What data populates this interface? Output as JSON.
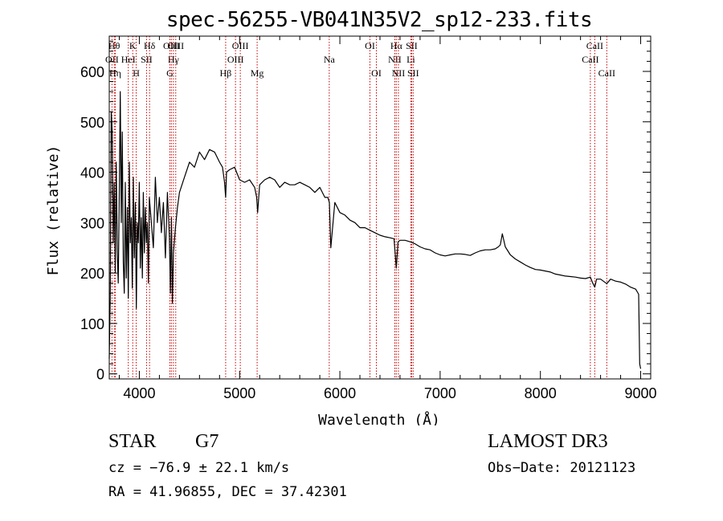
{
  "chart_data": {
    "type": "line",
    "title": "spec-56255-VB041N35V2_sp12-233.fits",
    "xlabel": "Wavelength (Å)",
    "ylabel": "Flux (relative)",
    "xlim": [
      3700,
      9100
    ],
    "ylim": [
      -10,
      670
    ],
    "xticks": [
      4000,
      5000,
      6000,
      7000,
      8000,
      9000
    ],
    "yticks": [
      0,
      100,
      200,
      300,
      400,
      500,
      600
    ],
    "grid": false,
    "series": [
      {
        "name": "flux",
        "x": [
          3700,
          3710,
          3720,
          3730,
          3740,
          3750,
          3760,
          3770,
          3780,
          3790,
          3800,
          3810,
          3820,
          3830,
          3840,
          3850,
          3860,
          3870,
          3880,
          3890,
          3900,
          3910,
          3920,
          3930,
          3940,
          3950,
          3960,
          3970,
          3980,
          3990,
          4000,
          4010,
          4020,
          4030,
          4040,
          4050,
          4060,
          4070,
          4080,
          4090,
          4100,
          4120,
          4140,
          4160,
          4180,
          4200,
          4220,
          4240,
          4260,
          4280,
          4300,
          4310,
          4320,
          4330,
          4340,
          4360,
          4380,
          4400,
          4450,
          4500,
          4550,
          4600,
          4650,
          4700,
          4750,
          4800,
          4830,
          4850,
          4861,
          4870,
          4900,
          4950,
          5000,
          5050,
          5100,
          5150,
          5170,
          5180,
          5200,
          5250,
          5300,
          5350,
          5400,
          5450,
          5500,
          5550,
          5600,
          5650,
          5700,
          5750,
          5800,
          5850,
          5880,
          5895,
          5910,
          5950,
          6000,
          6050,
          6100,
          6150,
          6200,
          6250,
          6300,
          6350,
          6400,
          6450,
          6500,
          6540,
          6563,
          6580,
          6600,
          6650,
          6700,
          6750,
          6800,
          6850,
          6900,
          6950,
          7000,
          7050,
          7100,
          7150,
          7200,
          7250,
          7300,
          7350,
          7400,
          7450,
          7500,
          7550,
          7580,
          7600,
          7620,
          7650,
          7700,
          7750,
          7800,
          7850,
          7900,
          7950,
          8000,
          8050,
          8100,
          8150,
          8200,
          8250,
          8300,
          8350,
          8400,
          8450,
          8498,
          8520,
          8542,
          8560,
          8600,
          8662,
          8700,
          8750,
          8800,
          8850,
          8900,
          8950,
          8980,
          8990,
          9000
        ],
        "values": [
          30,
          150,
          520,
          480,
          260,
          380,
          200,
          420,
          240,
          180,
          360,
          560,
          300,
          480,
          220,
          160,
          380,
          190,
          330,
          150,
          420,
          260,
          310,
          170,
          390,
          230,
          340,
          130,
          300,
          260,
          380,
          210,
          310,
          190,
          360,
          240,
          330,
          260,
          300,
          180,
          350,
          300,
          250,
          390,
          300,
          350,
          280,
          340,
          230,
          360,
          270,
          160,
          310,
          140,
          240,
          290,
          330,
          360,
          390,
          420,
          410,
          440,
          425,
          445,
          440,
          420,
          410,
          380,
          350,
          400,
          405,
          410,
          385,
          380,
          385,
          370,
          350,
          320,
          375,
          385,
          390,
          385,
          370,
          380,
          375,
          375,
          380,
          375,
          370,
          360,
          370,
          350,
          350,
          340,
          250,
          340,
          320,
          315,
          305,
          300,
          290,
          290,
          285,
          280,
          275,
          272,
          270,
          268,
          210,
          262,
          265,
          265,
          262,
          258,
          252,
          248,
          246,
          240,
          236,
          234,
          236,
          238,
          238,
          237,
          235,
          240,
          244,
          246,
          246,
          248,
          252,
          256,
          278,
          252,
          236,
          228,
          222,
          216,
          211,
          207,
          206,
          204,
          202,
          198,
          196,
          194,
          193,
          192,
          190,
          189,
          192,
          181,
          172,
          188,
          188,
          179,
          188,
          184,
          182,
          178,
          172,
          168,
          158,
          20,
          10
        ]
      }
    ],
    "lines": [
      {
        "name": "OII",
        "w": 3727,
        "row": 1
      },
      {
        "name": "Hθ",
        "w": 3750,
        "row": 0
      },
      {
        "name": "Hη",
        "w": 3760,
        "row": 2
      },
      {
        "name": "HeI",
        "w": 3890,
        "row": 1
      },
      {
        "name": "K",
        "w": 3934,
        "row": 0
      },
      {
        "name": "H",
        "w": 3969,
        "row": 2
      },
      {
        "name": "SII",
        "w": 4072,
        "row": 1
      },
      {
        "name": "Hδ",
        "w": 4102,
        "row": 0
      },
      {
        "name": "OIII",
        "w": 4320,
        "row": 0
      },
      {
        "name": "Hγ",
        "w": 4340,
        "row": 1
      },
      {
        "name": "G",
        "w": 4305,
        "row": 2
      },
      {
        "name": "OIII",
        "w": 4363,
        "row": 0
      },
      {
        "name": "Hβ",
        "w": 4861,
        "row": 2
      },
      {
        "name": "OIII",
        "w": 4959,
        "row": 1
      },
      {
        "name": "OIII",
        "w": 5007,
        "row": 0
      },
      {
        "name": "Mg",
        "w": 5175,
        "row": 2
      },
      {
        "name": "Na",
        "w": 5894,
        "row": 1
      },
      {
        "name": "OI",
        "w": 6300,
        "row": 0
      },
      {
        "name": "OI",
        "w": 6364,
        "row": 2
      },
      {
        "name": "NII",
        "w": 6548,
        "row": 1
      },
      {
        "name": "Hα",
        "w": 6563,
        "row": 0
      },
      {
        "name": "NII",
        "w": 6584,
        "row": 2
      },
      {
        "name": "Li",
        "w": 6708,
        "row": 1
      },
      {
        "name": "SII",
        "w": 6716,
        "row": 0
      },
      {
        "name": "SII",
        "w": 6731,
        "row": 2
      },
      {
        "name": "CaII",
        "w": 8498,
        "row": 1
      },
      {
        "name": "CaII",
        "w": 8542,
        "row": 0
      },
      {
        "name": "CaII",
        "w": 8662,
        "row": 2
      }
    ],
    "colors": {
      "spectrum": "#000000",
      "lines": "#c80000",
      "axis": "#000000"
    }
  },
  "info": {
    "class": "STAR",
    "subclass": "G7",
    "survey": "LAMOST DR3",
    "cz": "cz = −76.9 ± 22.1 km/s",
    "obs_date": "Obs−Date: 20121123",
    "radec": "RA =  41.96855, DEC =  37.42301"
  }
}
